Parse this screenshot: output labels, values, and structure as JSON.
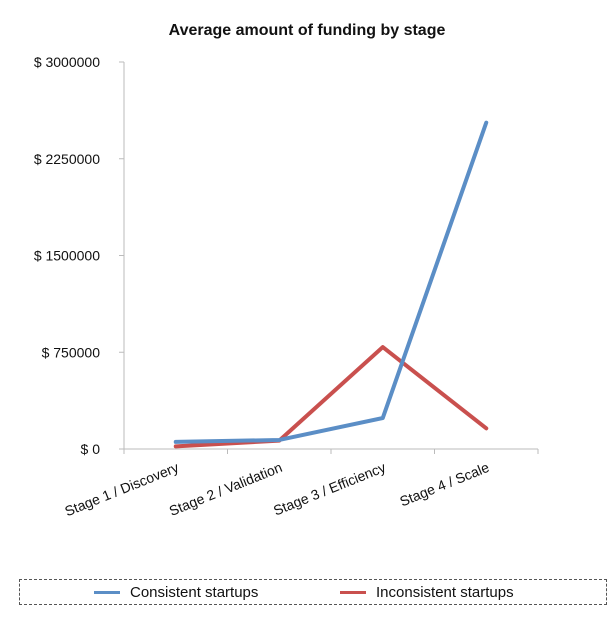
{
  "chart_data": {
    "type": "line",
    "title": "Average amount of funding by stage",
    "xlabel": "",
    "ylabel": "",
    "categories": [
      "Stage 1 / Discovery",
      "Stage 2 / Validation",
      "Stage 3 / Efficiency",
      "Stage 4 / Scale"
    ],
    "yticks": [
      0,
      750000,
      1500000,
      2250000,
      3000000
    ],
    "ytick_labels": [
      "$ 0",
      "$ 750000",
      "$ 1500000",
      "$ 2250000",
      "$ 3000000"
    ],
    "ylim": [
      0,
      3000000
    ],
    "grid": false,
    "legend_position": "bottom",
    "series": [
      {
        "name": "Consistent startups",
        "color": "#5b8ec6",
        "values": [
          55000,
          70000,
          240000,
          2530000
        ]
      },
      {
        "name": "Inconsistent startups",
        "color": "#c9504e",
        "values": [
          20000,
          65000,
          790000,
          160000
        ]
      }
    ]
  }
}
